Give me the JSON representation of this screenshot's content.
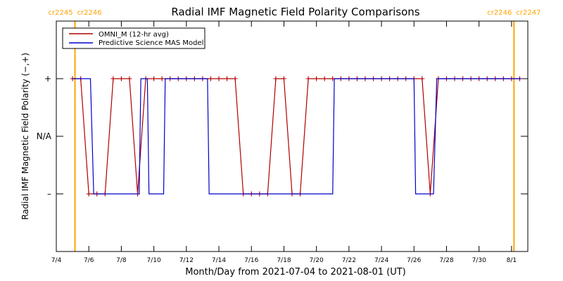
{
  "chart_data": {
    "type": "line",
    "title": "Radial IMF Magnetic Field Polarity Comparisons",
    "xlabel": "Month/Day from 2021-07-04 to 2021-08-01 (UT)",
    "ylabel": "Radial IMF Magnetic Field Polarity (−,+)",
    "x_unit": "day",
    "xlim": [
      0,
      29
    ],
    "x_ticks": [
      {
        "x": 0,
        "label": "7/4"
      },
      {
        "x": 2,
        "label": "7/6"
      },
      {
        "x": 4,
        "label": "7/8"
      },
      {
        "x": 6,
        "label": "7/10"
      },
      {
        "x": 8,
        "label": "7/12"
      },
      {
        "x": 10,
        "label": "7/14"
      },
      {
        "x": 12,
        "label": "7/16"
      },
      {
        "x": 14,
        "label": "7/18"
      },
      {
        "x": 16,
        "label": "7/20"
      },
      {
        "x": 18,
        "label": "7/22"
      },
      {
        "x": 20,
        "label": "7/24"
      },
      {
        "x": 22,
        "label": "7/26"
      },
      {
        "x": 24,
        "label": "7/28"
      },
      {
        "x": 26,
        "label": "7/30"
      },
      {
        "x": 28,
        "label": "8/1"
      }
    ],
    "ylim": [
      -2,
      2
    ],
    "y_ticks": [
      {
        "y": 1,
        "label": "+"
      },
      {
        "y": 0,
        "label": "N/A"
      },
      {
        "y": -1,
        "label": "–"
      }
    ],
    "legend_position": "top-left",
    "carrington_markers": [
      {
        "x": 1.15,
        "color": "#ffa500",
        "label_left": "cr2245",
        "label_right": "cr2246"
      },
      {
        "x": 28.15,
        "color": "#ffa500",
        "label_left": "cr2246",
        "label_right": "cr2247"
      }
    ],
    "series": [
      {
        "name": "OMNI_M (12-hr avg)",
        "color": "#b00000",
        "markers": "plus",
        "x": [
          1.0,
          1.5,
          2.0,
          2.5,
          3.0,
          3.5,
          4.0,
          4.5,
          5.0,
          5.5,
          6.0,
          6.5,
          7.0,
          7.5,
          8.0,
          8.5,
          9.0,
          9.5,
          10.0,
          10.5,
          11.0,
          11.5,
          12.0,
          12.5,
          13.0,
          13.5,
          14.0,
          14.5,
          15.0,
          15.5,
          16.0,
          16.5,
          17.0,
          17.5,
          18.0,
          18.5,
          19.0,
          19.5,
          20.0,
          20.5,
          21.0,
          21.5,
          22.0,
          22.5,
          23.0,
          23.5,
          24.0,
          24.5,
          25.0,
          25.5,
          26.0,
          26.5,
          27.0,
          27.5,
          28.0,
          28.5
        ],
        "y": [
          1,
          1,
          -1,
          -1,
          -1,
          1,
          1,
          1,
          -1,
          1,
          1,
          1,
          1,
          1,
          1,
          1,
          1,
          1,
          1,
          1,
          1,
          -1,
          -1,
          -1,
          -1,
          1,
          1,
          -1,
          -1,
          1,
          1,
          1,
          1,
          1,
          1,
          1,
          1,
          1,
          1,
          1,
          1,
          1,
          1,
          1,
          -1,
          1,
          1,
          1,
          1,
          1,
          1,
          1,
          1,
          1,
          1,
          1
        ]
      },
      {
        "name": "Predictive Science MAS Model",
        "color": "#0000cc",
        "markers": "none",
        "x": [
          1.0,
          2.1,
          2.3,
          5.1,
          5.2,
          5.6,
          5.7,
          6.6,
          6.7,
          9.3,
          9.4,
          17.0,
          17.1,
          22.0,
          22.1,
          23.2,
          23.4,
          28.6
        ],
        "y": [
          1,
          1,
          -1,
          -1,
          1,
          1,
          -1,
          -1,
          1,
          1,
          -1,
          -1,
          1,
          1,
          -1,
          -1,
          1,
          1
        ]
      }
    ]
  }
}
